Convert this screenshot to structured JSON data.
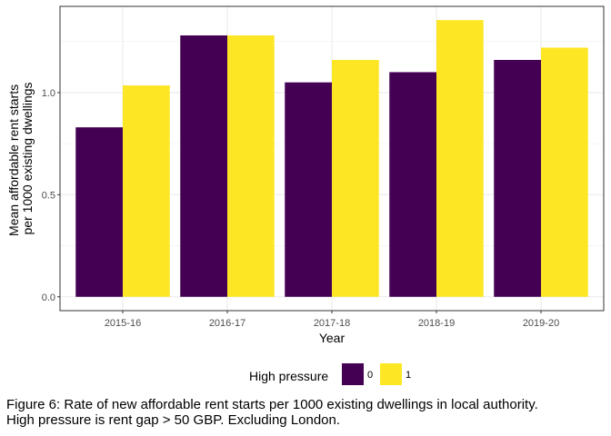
{
  "chart_data": {
    "type": "bar",
    "categories": [
      "2015-16",
      "2016-17",
      "2017-18",
      "2018-19",
      "2019-20"
    ],
    "series": [
      {
        "name": "0",
        "values": [
          0.83,
          1.28,
          1.05,
          1.1,
          1.16
        ],
        "color": "#440154"
      },
      {
        "name": "1",
        "values": [
          1.035,
          1.28,
          1.16,
          1.355,
          1.22
        ],
        "color": "#FDE725"
      }
    ],
    "xlabel": "Year",
    "ylabel": [
      "Mean affordable rent starts",
      "per 1000 existing dwellings"
    ],
    "ylim": [
      -0.0678,
      1.4223
    ],
    "yticks": [
      0.0,
      0.5,
      1.0
    ],
    "ytick_labels": [
      "0.0",
      "0.5",
      "1.0"
    ],
    "grid": true,
    "legend": {
      "title": "High pressure",
      "position": "bottom"
    }
  },
  "caption": {
    "line1": "Figure 6: Rate of new affordable rent starts per 1000 existing dwellings in local authority.",
    "line2": "High pressure is rent gap > 50 GBP. Excluding London."
  }
}
